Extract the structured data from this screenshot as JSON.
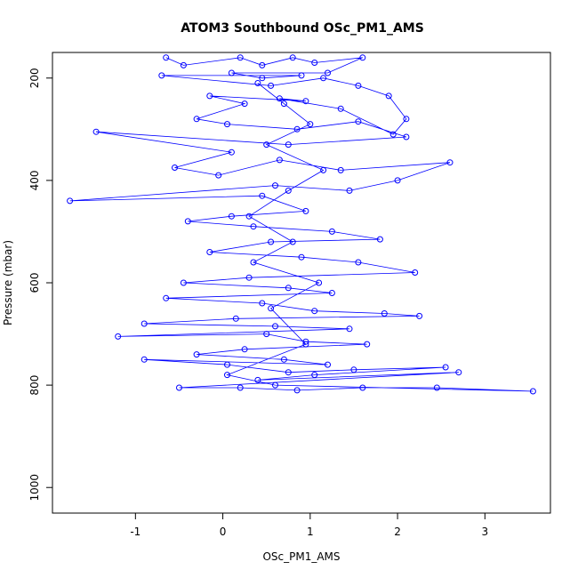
{
  "chart_data": {
    "type": "scatter",
    "title": "ATOM3 Southbound OSc_PM1_AMS",
    "xlabel": "OSc_PM1_AMS",
    "ylabel": "Pressure (mbar)",
    "xlim": [
      -1.95,
      3.75
    ],
    "ylim": [
      1050,
      150
    ],
    "y_inverted": true,
    "x_ticks": [
      -1,
      0,
      1,
      2,
      3
    ],
    "x_tick_labels": [
      "-1",
      "0",
      "1",
      "2",
      "3"
    ],
    "y_ticks": [
      200,
      400,
      600,
      800,
      1000
    ],
    "y_tick_labels": [
      "200",
      "400",
      "600",
      "800",
      "1000"
    ],
    "series_color": "#0000ff",
    "marker": "open-circle",
    "connected": true,
    "points": [
      [
        -0.65,
        160
      ],
      [
        -0.45,
        175
      ],
      [
        0.2,
        160
      ],
      [
        0.45,
        175
      ],
      [
        0.8,
        160
      ],
      [
        1.05,
        170
      ],
      [
        1.6,
        160
      ],
      [
        1.2,
        190
      ],
      [
        0.1,
        190
      ],
      [
        0.45,
        200
      ],
      [
        0.9,
        195
      ],
      [
        -0.7,
        195
      ],
      [
        0.55,
        215
      ],
      [
        1.15,
        200
      ],
      [
        1.55,
        215
      ],
      [
        1.9,
        235
      ],
      [
        2.1,
        280
      ],
      [
        1.95,
        310
      ],
      [
        1.35,
        260
      ],
      [
        0.65,
        240
      ],
      [
        0.95,
        245
      ],
      [
        -0.15,
        235
      ],
      [
        0.25,
        250
      ],
      [
        -0.3,
        280
      ],
      [
        0.05,
        290
      ],
      [
        0.85,
        300
      ],
      [
        1.55,
        285
      ],
      [
        2.1,
        315
      ],
      [
        0.75,
        330
      ],
      [
        -1.45,
        305
      ],
      [
        0.1,
        345
      ],
      [
        -0.55,
        375
      ],
      [
        -0.05,
        390
      ],
      [
        0.65,
        360
      ],
      [
        1.35,
        380
      ],
      [
        2.6,
        365
      ],
      [
        2.0,
        400
      ],
      [
        1.45,
        420
      ],
      [
        0.6,
        410
      ],
      [
        -1.75,
        440
      ],
      [
        0.45,
        430
      ],
      [
        0.95,
        460
      ],
      [
        0.1,
        470
      ],
      [
        -0.4,
        480
      ],
      [
        0.35,
        490
      ],
      [
        1.25,
        500
      ],
      [
        1.8,
        515
      ],
      [
        0.55,
        520
      ],
      [
        -0.15,
        540
      ],
      [
        0.9,
        550
      ],
      [
        1.55,
        560
      ],
      [
        2.2,
        580
      ],
      [
        0.3,
        590
      ],
      [
        -0.45,
        600
      ],
      [
        0.75,
        610
      ],
      [
        1.25,
        620
      ],
      [
        -0.65,
        630
      ],
      [
        0.45,
        640
      ],
      [
        1.05,
        655
      ],
      [
        1.85,
        660
      ],
      [
        2.25,
        665
      ],
      [
        0.15,
        670
      ],
      [
        -0.9,
        680
      ],
      [
        0.6,
        685
      ],
      [
        1.45,
        690
      ],
      [
        -1.2,
        705
      ],
      [
        0.5,
        700
      ],
      [
        0.95,
        715
      ],
      [
        1.65,
        720
      ],
      [
        0.25,
        730
      ],
      [
        -0.3,
        740
      ],
      [
        0.7,
        750
      ],
      [
        1.2,
        760
      ],
      [
        -0.9,
        750
      ],
      [
        0.05,
        760
      ],
      [
        0.75,
        775
      ],
      [
        1.5,
        770
      ],
      [
        2.55,
        765
      ],
      [
        1.05,
        780
      ],
      [
        0.4,
        790
      ],
      [
        2.7,
        775
      ],
      [
        -0.5,
        805
      ],
      [
        0.2,
        805
      ],
      [
        0.85,
        810
      ],
      [
        1.6,
        805
      ],
      [
        2.45,
        805
      ],
      [
        3.55,
        812
      ],
      [
        0.6,
        800
      ],
      [
        0.05,
        780
      ],
      [
        0.95,
        720
      ],
      [
        0.55,
        650
      ],
      [
        1.1,
        600
      ],
      [
        0.35,
        560
      ],
      [
        0.8,
        520
      ],
      [
        0.3,
        470
      ],
      [
        0.75,
        420
      ],
      [
        1.15,
        380
      ],
      [
        0.5,
        330
      ],
      [
        1.0,
        290
      ],
      [
        0.7,
        250
      ],
      [
        0.4,
        210
      ]
    ]
  }
}
